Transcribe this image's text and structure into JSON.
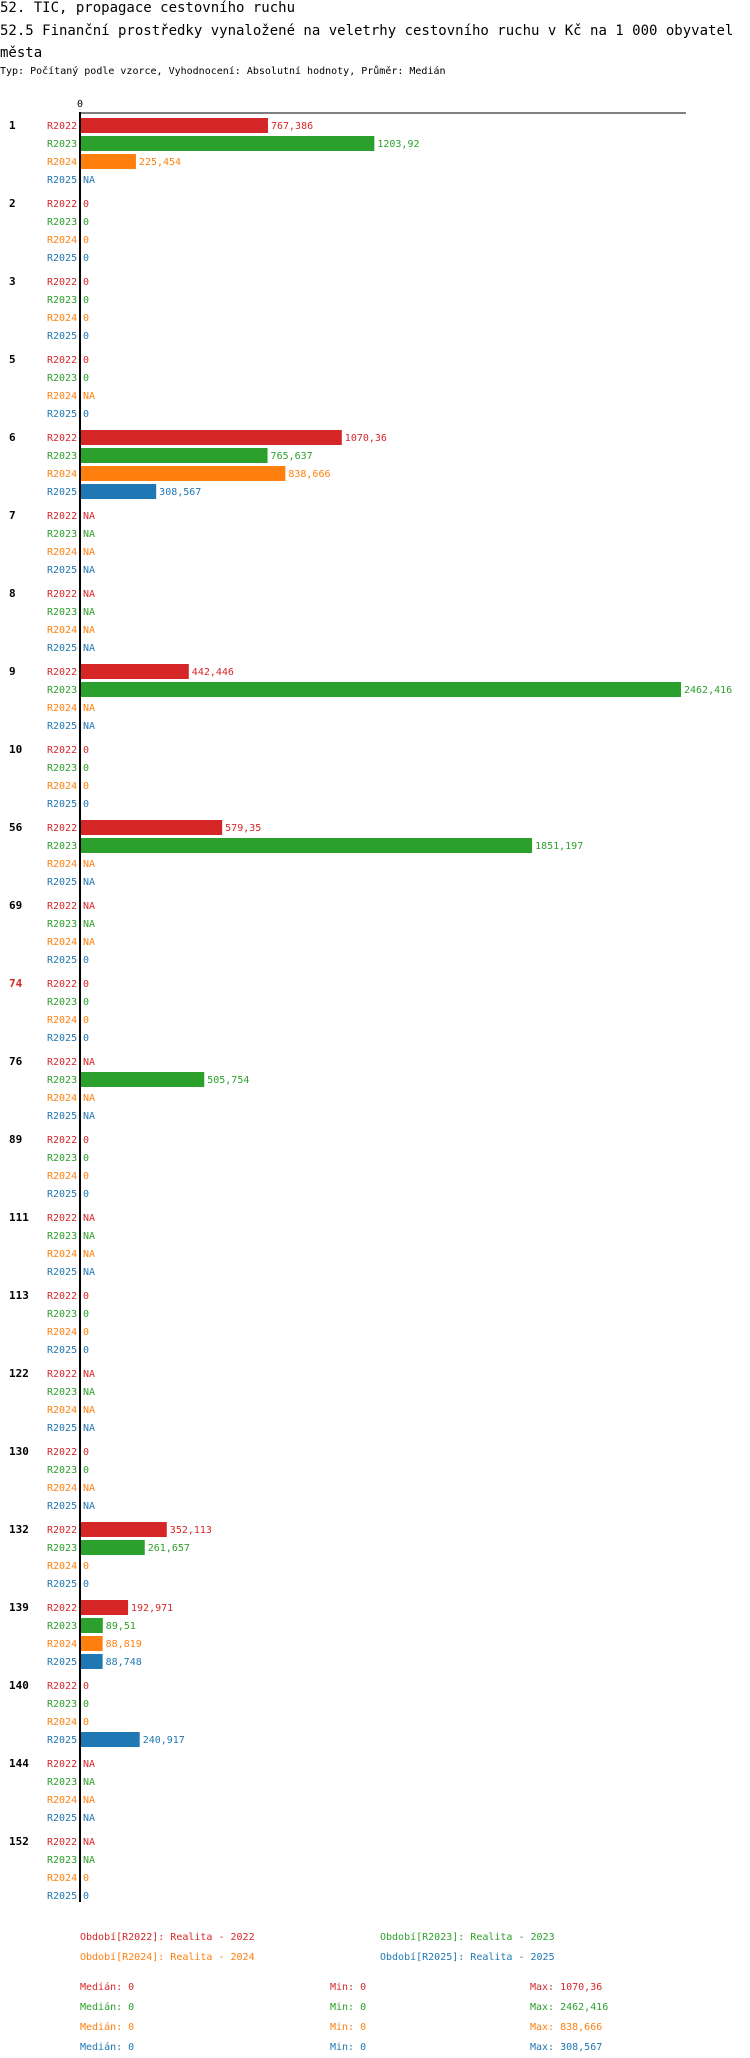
{
  "header": {
    "title": "52. TIC, propagace cestovního ruchu",
    "subtitle": "52.5 Finanční  prostředky vynaložené na veletrhy cestovního ruchu v Kč na 1 000 obyvatel města",
    "filters": "Typ: Počítaný podle vzorce, Vyhodnocení: Absolutní hodnoty, Průměr: Medián"
  },
  "colors": {
    "R2022": "#d62728",
    "R2023": "#2ca02c",
    "R2024": "#ff7f0e",
    "R2025": "#1f77b4",
    "highlight": "#d62728"
  },
  "chart_data": {
    "type": "bar",
    "orientation": "horizontal",
    "axis_label": "0",
    "xlim": [
      0,
      2462.416
    ],
    "series_names": [
      "R2022",
      "R2023",
      "R2024",
      "R2025"
    ],
    "groups": [
      {
        "id": "1",
        "highlight": false,
        "labels": [
          "767,386",
          "1203,92",
          "225,454",
          "NA"
        ],
        "values": [
          767.386,
          1203.92,
          225.454,
          null
        ]
      },
      {
        "id": "2",
        "highlight": false,
        "labels": [
          "0",
          "0",
          "0",
          "0"
        ],
        "values": [
          0,
          0,
          0,
          0
        ]
      },
      {
        "id": "3",
        "highlight": false,
        "labels": [
          "0",
          "0",
          "0",
          "0"
        ],
        "values": [
          0,
          0,
          0,
          0
        ]
      },
      {
        "id": "5",
        "highlight": false,
        "labels": [
          "0",
          "0",
          "NA",
          "0"
        ],
        "values": [
          0,
          0,
          null,
          0
        ]
      },
      {
        "id": "6",
        "highlight": false,
        "labels": [
          "1070,36",
          "765,637",
          "838,666",
          "308,567"
        ],
        "values": [
          1070.36,
          765.637,
          838.666,
          308.567
        ]
      },
      {
        "id": "7",
        "highlight": false,
        "labels": [
          "NA",
          "NA",
          "NA",
          "NA"
        ],
        "values": [
          null,
          null,
          null,
          null
        ]
      },
      {
        "id": "8",
        "highlight": false,
        "labels": [
          "NA",
          "NA",
          "NA",
          "NA"
        ],
        "values": [
          null,
          null,
          null,
          null
        ]
      },
      {
        "id": "9",
        "highlight": false,
        "labels": [
          "442,446",
          "2462,416",
          "NA",
          "NA"
        ],
        "values": [
          442.446,
          2462.416,
          null,
          null
        ]
      },
      {
        "id": "10",
        "highlight": false,
        "labels": [
          "0",
          "0",
          "0",
          "0"
        ],
        "values": [
          0,
          0,
          0,
          0
        ]
      },
      {
        "id": "56",
        "highlight": false,
        "labels": [
          "579,35",
          "1851,197",
          "NA",
          "NA"
        ],
        "values": [
          579.35,
          1851.197,
          null,
          null
        ]
      },
      {
        "id": "69",
        "highlight": false,
        "labels": [
          "NA",
          "NA",
          "NA",
          "0"
        ],
        "values": [
          null,
          null,
          null,
          0
        ]
      },
      {
        "id": "74",
        "highlight": true,
        "labels": [
          "0",
          "0",
          "0",
          "0"
        ],
        "values": [
          0,
          0,
          0,
          0
        ]
      },
      {
        "id": "76",
        "highlight": false,
        "labels": [
          "NA",
          "505,754",
          "NA",
          "NA"
        ],
        "values": [
          null,
          505.754,
          null,
          null
        ]
      },
      {
        "id": "89",
        "highlight": false,
        "labels": [
          "0",
          "0",
          "0",
          "0"
        ],
        "values": [
          0,
          0,
          0,
          0
        ]
      },
      {
        "id": "111",
        "highlight": false,
        "labels": [
          "NA",
          "NA",
          "NA",
          "NA"
        ],
        "values": [
          null,
          null,
          null,
          null
        ]
      },
      {
        "id": "113",
        "highlight": false,
        "labels": [
          "0",
          "0",
          "0",
          "0"
        ],
        "values": [
          0,
          0,
          0,
          0
        ]
      },
      {
        "id": "122",
        "highlight": false,
        "labels": [
          "NA",
          "NA",
          "NA",
          "NA"
        ],
        "values": [
          null,
          null,
          null,
          null
        ]
      },
      {
        "id": "130",
        "highlight": false,
        "labels": [
          "0",
          "0",
          "NA",
          "NA"
        ],
        "values": [
          0,
          0,
          null,
          null
        ]
      },
      {
        "id": "132",
        "highlight": false,
        "labels": [
          "352,113",
          "261,657",
          "0",
          "0"
        ],
        "values": [
          352.113,
          261.657,
          0,
          0
        ]
      },
      {
        "id": "139",
        "highlight": false,
        "labels": [
          "192,971",
          "89,51",
          "88,819",
          "88,748"
        ],
        "values": [
          192.971,
          89.51,
          88.819,
          88.748
        ]
      },
      {
        "id": "140",
        "highlight": false,
        "labels": [
          "0",
          "0",
          "0",
          "240,917"
        ],
        "values": [
          0,
          0,
          0,
          240.917
        ]
      },
      {
        "id": "144",
        "highlight": false,
        "labels": [
          "NA",
          "NA",
          "NA",
          "NA"
        ],
        "values": [
          null,
          null,
          null,
          null
        ]
      },
      {
        "id": "152",
        "highlight": false,
        "labels": [
          "NA",
          "NA",
          "0",
          "0"
        ],
        "values": [
          null,
          null,
          0,
          0
        ]
      }
    ],
    "legend": [
      "Období[R2022]: Realita - 2022",
      "Období[R2023]: Realita - 2023",
      "Období[R2024]: Realita - 2024",
      "Období[R2025]: Realita - 2025"
    ],
    "stats": [
      {
        "median": "Medián: 0",
        "min": "Min: 0",
        "max": "Max: 1070,36"
      },
      {
        "median": "Medián: 0",
        "min": "Min: 0",
        "max": "Max: 2462,416"
      },
      {
        "median": "Medián: 0",
        "min": "Min: 0",
        "max": "Max: 838,666"
      },
      {
        "median": "Medián: 0",
        "min": "Min: 0",
        "max": "Max: 308,567"
      }
    ]
  }
}
